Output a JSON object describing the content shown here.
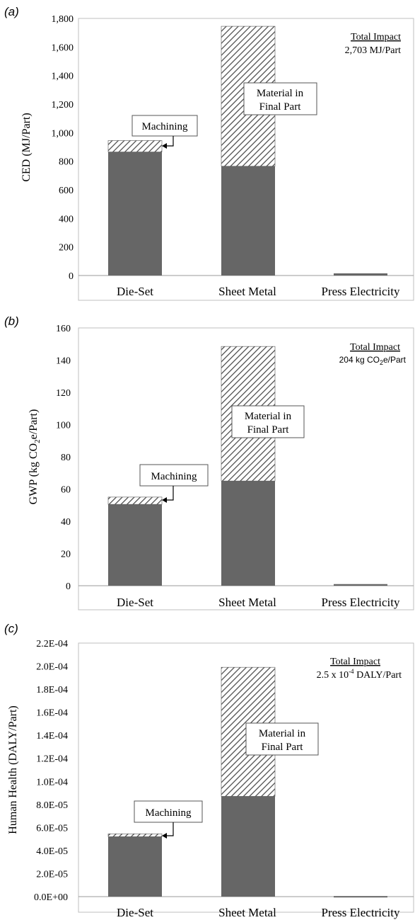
{
  "chart_data": [
    {
      "panel_label": "(a)",
      "type": "bar",
      "stacked": true,
      "categories": [
        "Die-Set",
        "Sheet Metal",
        "Press Electricity"
      ],
      "ylabel": "CED (MJ/Part)",
      "ylim": [
        0,
        1800
      ],
      "yticks": [
        0,
        200,
        400,
        600,
        800,
        1000,
        1200,
        1400,
        1600,
        1800
      ],
      "tick_labels": [
        "0",
        "200",
        "400",
        "600",
        "800",
        "1,000",
        "1,200",
        "1,400",
        "1,600",
        "1,800"
      ],
      "series": [
        {
          "values": [
            865,
            765,
            15
          ]
        },
        {
          "values": [
            80,
            980,
            0
          ]
        }
      ],
      "annotations": {
        "machining": "Machining",
        "material_line1": "Material in",
        "material_line2": "Final Part",
        "total_title": "Total Impact",
        "total_value": "2,703 MJ/Part"
      }
    },
    {
      "panel_label": "(b)",
      "type": "bar",
      "stacked": true,
      "categories": [
        "Die-Set",
        "Sheet Metal",
        "Press Electricity"
      ],
      "ylabel": "GWP (kg CO2e/Part)",
      "ylim": [
        0,
        160
      ],
      "yticks": [
        0,
        20,
        40,
        60,
        80,
        100,
        120,
        140,
        160
      ],
      "tick_labels": [
        "0",
        "20",
        "40",
        "60",
        "80",
        "100",
        "120",
        "140",
        "160"
      ],
      "series": [
        {
          "values": [
            50.5,
            65,
            1
          ]
        },
        {
          "values": [
            4.5,
            83.5,
            0
          ]
        }
      ],
      "annotations": {
        "machining": "Machining",
        "material_line1": "Material in",
        "material_line2": "Final Part",
        "total_title": "Total Impact",
        "total_value": "204 kg CO2e/Part"
      }
    },
    {
      "panel_label": "(c)",
      "type": "bar",
      "stacked": true,
      "categories": [
        "Die-Set",
        "Sheet Metal",
        "Press Electricity"
      ],
      "ylabel": "Human Health (DALY/Part)",
      "ylim": [
        0,
        0.00022
      ],
      "yticks": [
        0,
        2e-05,
        4e-05,
        6e-05,
        8e-05,
        0.0001,
        0.00012,
        0.00014,
        0.00016,
        0.00018,
        0.0002,
        0.00022
      ],
      "tick_labels": [
        "0.0E+00",
        "2.0E-05",
        "4.0E-05",
        "6.0E-05",
        "8.0E-05",
        "1.0E-04",
        "1.2E-04",
        "1.4E-04",
        "1.6E-04",
        "1.8E-04",
        "2.0E-04",
        "2.2E-04"
      ],
      "series": [
        {
          "values": [
            5.2e-05,
            8.7e-05,
            5e-07
          ]
        },
        {
          "values": [
            2.5e-06,
            0.000112,
            0
          ]
        }
      ],
      "annotations": {
        "machining": "Machining",
        "material_line1": "Material in",
        "material_line2": "Final Part",
        "total_title": "Total Impact",
        "total_value": "2.5 x 10-4 DALY/Part"
      }
    }
  ],
  "colors": {
    "solid": "#666666",
    "hatch": "#444444",
    "axis": "#999999",
    "grid_border": "#bfbfbf"
  }
}
